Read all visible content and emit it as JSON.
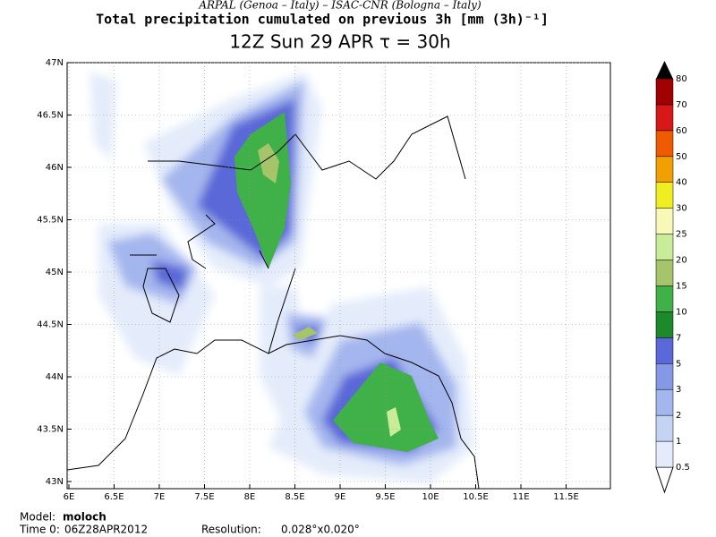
{
  "header": {
    "credits": "ARPAL (Genoa – Italy)  –  ISAC-CNR (Bologna – Italy)",
    "title": "Total precipitation cumulated on previous 3h [mm (3h)⁻¹]",
    "subtitle": "12Z Sun 29 APR  τ = 30h"
  },
  "map": {
    "lon_labels": [
      "6E",
      "6.5E",
      "7E",
      "7.5E",
      "8E",
      "8.5E",
      "9E",
      "9.5E",
      "10E",
      "10.5E",
      "11E",
      "11.5E"
    ],
    "lat_labels": [
      "47N",
      "46.5N",
      "46N",
      "45.5N",
      "45N",
      "44.5N",
      "44N",
      "43.5N",
      "43N"
    ]
  },
  "colorbar": {
    "levels": [
      0.5,
      1,
      2,
      3,
      5,
      7,
      10,
      15,
      20,
      25,
      30,
      40,
      50,
      60,
      70,
      80
    ],
    "colors": [
      "#e4ecfb",
      "#c4d2f4",
      "#a4b6ee",
      "#8498e6",
      "#5a68d8",
      "#1c8a2a",
      "#40b048",
      "#a6c46a",
      "#c8ec98",
      "#f8f8b8",
      "#f0ee20",
      "#f0a000",
      "#f05a00",
      "#d81818",
      "#a00000"
    ]
  },
  "footer": {
    "model_label": "Model:",
    "model": "moloch",
    "time_label": "Time 0:",
    "time": "06Z28APR2012",
    "res_label": "Resolution:",
    "res": "0.028°x0.020°"
  }
}
